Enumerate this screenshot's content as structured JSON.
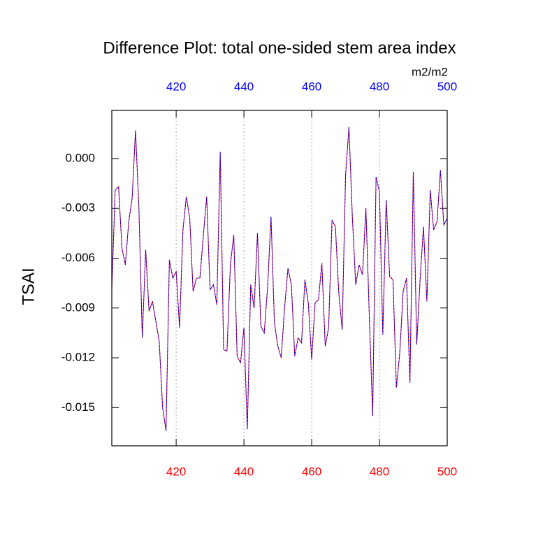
{
  "chart_data": {
    "type": "line",
    "title": "Difference Plot: total one-sided stem area index",
    "ylabel": "TSAI",
    "units": "m2/m2",
    "x": [
      401,
      402,
      403,
      404,
      405,
      406,
      407,
      408,
      409,
      410,
      411,
      412,
      413,
      414,
      415,
      416,
      417,
      418,
      419,
      420,
      421,
      422,
      423,
      424,
      425,
      426,
      427,
      428,
      429,
      430,
      431,
      432,
      433,
      434,
      435,
      436,
      437,
      438,
      439,
      440,
      441,
      442,
      443,
      444,
      445,
      446,
      447,
      448,
      449,
      450,
      451,
      452,
      453,
      454,
      455,
      456,
      457,
      458,
      459,
      460,
      461,
      462,
      463,
      464,
      465,
      466,
      467,
      468,
      469,
      470,
      471,
      472,
      473,
      474,
      475,
      476,
      477,
      478,
      479,
      480,
      481,
      482,
      483,
      484,
      485,
      486,
      487,
      488,
      489,
      490,
      491,
      492,
      493,
      494,
      495,
      496,
      497,
      498,
      499,
      500
    ],
    "series": [
      {
        "color": "#ff0000",
        "dash": false,
        "values": [
          -0.0079,
          -0.0019,
          -0.0017,
          -0.0054,
          -0.0064,
          -0.0038,
          -0.0024,
          0.0017,
          -0.003,
          -0.0108,
          -0.0055,
          -0.0092,
          -0.0086,
          -0.0098,
          -0.011,
          -0.015,
          -0.0164,
          -0.0061,
          -0.0072,
          -0.0068,
          -0.0102,
          -0.0043,
          -0.0023,
          -0.0036,
          -0.008,
          -0.0072,
          -0.0072,
          -0.0047,
          -0.0023,
          -0.0079,
          -0.0076,
          -0.0088,
          0.0004,
          -0.0115,
          -0.0116,
          -0.0064,
          -0.0046,
          -0.0119,
          -0.0123,
          -0.0102,
          -0.0163,
          -0.0076,
          -0.009,
          -0.0045,
          -0.0101,
          -0.0105,
          -0.0077,
          -0.0035,
          -0.0099,
          -0.0113,
          -0.012,
          -0.009,
          -0.0066,
          -0.0076,
          -0.0119,
          -0.0108,
          -0.0111,
          -0.0073,
          -0.0087,
          -0.0121,
          -0.0087,
          -0.0085,
          -0.0063,
          -0.0113,
          -0.0102,
          -0.0037,
          -0.0041,
          -0.0081,
          -0.0103,
          -0.001,
          0.0019,
          -0.0035,
          -0.0076,
          -0.0064,
          -0.007,
          -0.003,
          -0.0094,
          -0.0155,
          -0.0011,
          -0.002,
          -0.0106,
          -0.0025,
          -0.0071,
          -0.0073,
          -0.0138,
          -0.0117,
          -0.008,
          -0.0072,
          -0.0135,
          -0.0008,
          -0.0112,
          -0.0073,
          -0.0041,
          -0.0086,
          -0.0019,
          -0.0043,
          -0.0038,
          -0.0007,
          -0.004,
          -0.0036
        ]
      },
      {
        "color": "#0000ff",
        "dash": true,
        "values": [
          -0.0079,
          -0.0019,
          -0.0017,
          -0.0054,
          -0.0064,
          -0.0038,
          -0.0024,
          0.0017,
          -0.003,
          -0.0108,
          -0.0055,
          -0.0092,
          -0.0086,
          -0.0098,
          -0.011,
          -0.015,
          -0.0164,
          -0.0061,
          -0.0072,
          -0.0068,
          -0.0102,
          -0.0043,
          -0.0023,
          -0.0036,
          -0.008,
          -0.0072,
          -0.0072,
          -0.0047,
          -0.0023,
          -0.0079,
          -0.0076,
          -0.0088,
          0.0004,
          -0.0115,
          -0.0116,
          -0.0064,
          -0.0046,
          -0.0119,
          -0.0123,
          -0.0102,
          -0.0163,
          -0.0076,
          -0.009,
          -0.0045,
          -0.0101,
          -0.0105,
          -0.0077,
          -0.0035,
          -0.0099,
          -0.0113,
          -0.012,
          -0.009,
          -0.0066,
          -0.0076,
          -0.0119,
          -0.0108,
          -0.0111,
          -0.0073,
          -0.0087,
          -0.0121,
          -0.0087,
          -0.0085,
          -0.0063,
          -0.0113,
          -0.0102,
          -0.0037,
          -0.0041,
          -0.0081,
          -0.0103,
          -0.001,
          0.0019,
          -0.0035,
          -0.0076,
          -0.0064,
          -0.007,
          -0.003,
          -0.0094,
          -0.0155,
          -0.0011,
          -0.002,
          -0.0106,
          -0.0025,
          -0.0071,
          -0.0073,
          -0.0138,
          -0.0117,
          -0.008,
          -0.0072,
          -0.0135,
          -0.0008,
          -0.0112,
          -0.0073,
          -0.0041,
          -0.0086,
          -0.0019,
          -0.0043,
          -0.0038,
          -0.0007,
          -0.004,
          -0.0036
        ]
      }
    ],
    "xlim": [
      401,
      500
    ],
    "xticks": [
      420,
      440,
      460,
      480,
      500
    ],
    "top_tick_color": "#0000ff",
    "bottom_tick_color": "#ff0000",
    "ylim": [
      -0.0173,
      0.0029
    ],
    "yticks": [
      {
        "value": 0,
        "label": "0.000"
      },
      {
        "value": -0.003,
        "label": "-0.003"
      },
      {
        "value": -0.006,
        "label": "-0.006"
      },
      {
        "value": -0.009,
        "label": "-0.009"
      },
      {
        "value": -0.012,
        "label": "-0.012"
      },
      {
        "value": -0.015,
        "label": "-0.015"
      }
    ],
    "grid": "x"
  }
}
